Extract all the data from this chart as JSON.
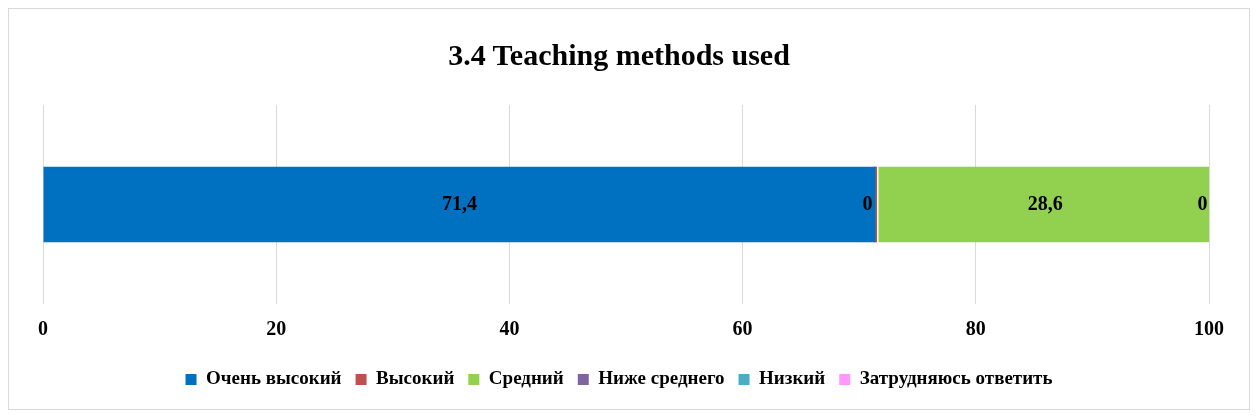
{
  "chart_data": {
    "type": "bar",
    "title": "3.4 Teaching methods used",
    "orientation": "horizontal",
    "stacked": true,
    "categories": [
      null
    ],
    "series": [
      {
        "name": "Очень высокий",
        "color": "#0070c0",
        "values": [
          71.4
        ],
        "value_labels": [
          "71,4"
        ]
      },
      {
        "name": "Высокий",
        "color": "#c0504d",
        "values": [
          0
        ],
        "value_labels": [
          "0"
        ]
      },
      {
        "name": "Средний",
        "color": "#92d050",
        "values": [
          28.6
        ],
        "value_labels": [
          "28,6"
        ]
      },
      {
        "name": "Ниже среднего",
        "color": "#8064a2",
        "values": [
          0
        ],
        "value_labels": [
          "0"
        ]
      },
      {
        "name": "Низкий",
        "color": "#4bacc6",
        "values": [
          0
        ],
        "value_labels": [
          null
        ]
      },
      {
        "name": "Затрудняюсь ответить",
        "color": "#ff99ff",
        "values": [
          0
        ],
        "value_labels": [
          null
        ]
      }
    ],
    "xlim": [
      0,
      100
    ],
    "xticks": [
      0,
      20,
      40,
      60,
      80,
      100
    ],
    "grid": "x",
    "legend": "bottom"
  }
}
